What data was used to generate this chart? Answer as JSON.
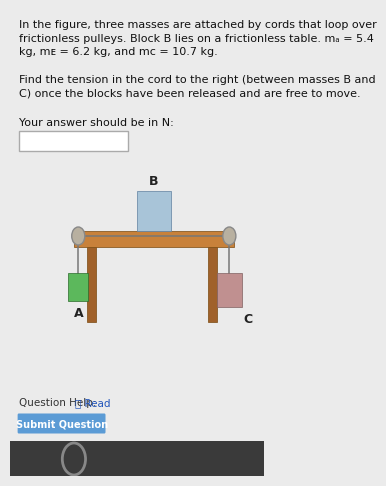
{
  "bg_color": "#ebebeb",
  "table_top_color": "#c8813a",
  "table_leg_color": "#a0612a",
  "block_B_color": "#a8c4d8",
  "block_A_color": "#5cb85c",
  "block_C_color": "#c09090",
  "pulley_color": "#b8b0a0",
  "pulley_edge_color": "#888888",
  "cord_color": "#777777",
  "submit_button_color": "#5b9bd5",
  "dark_bar_color": "#3a3a3a",
  "mA": 5.4,
  "mB": 6.2,
  "mC": 10.7
}
